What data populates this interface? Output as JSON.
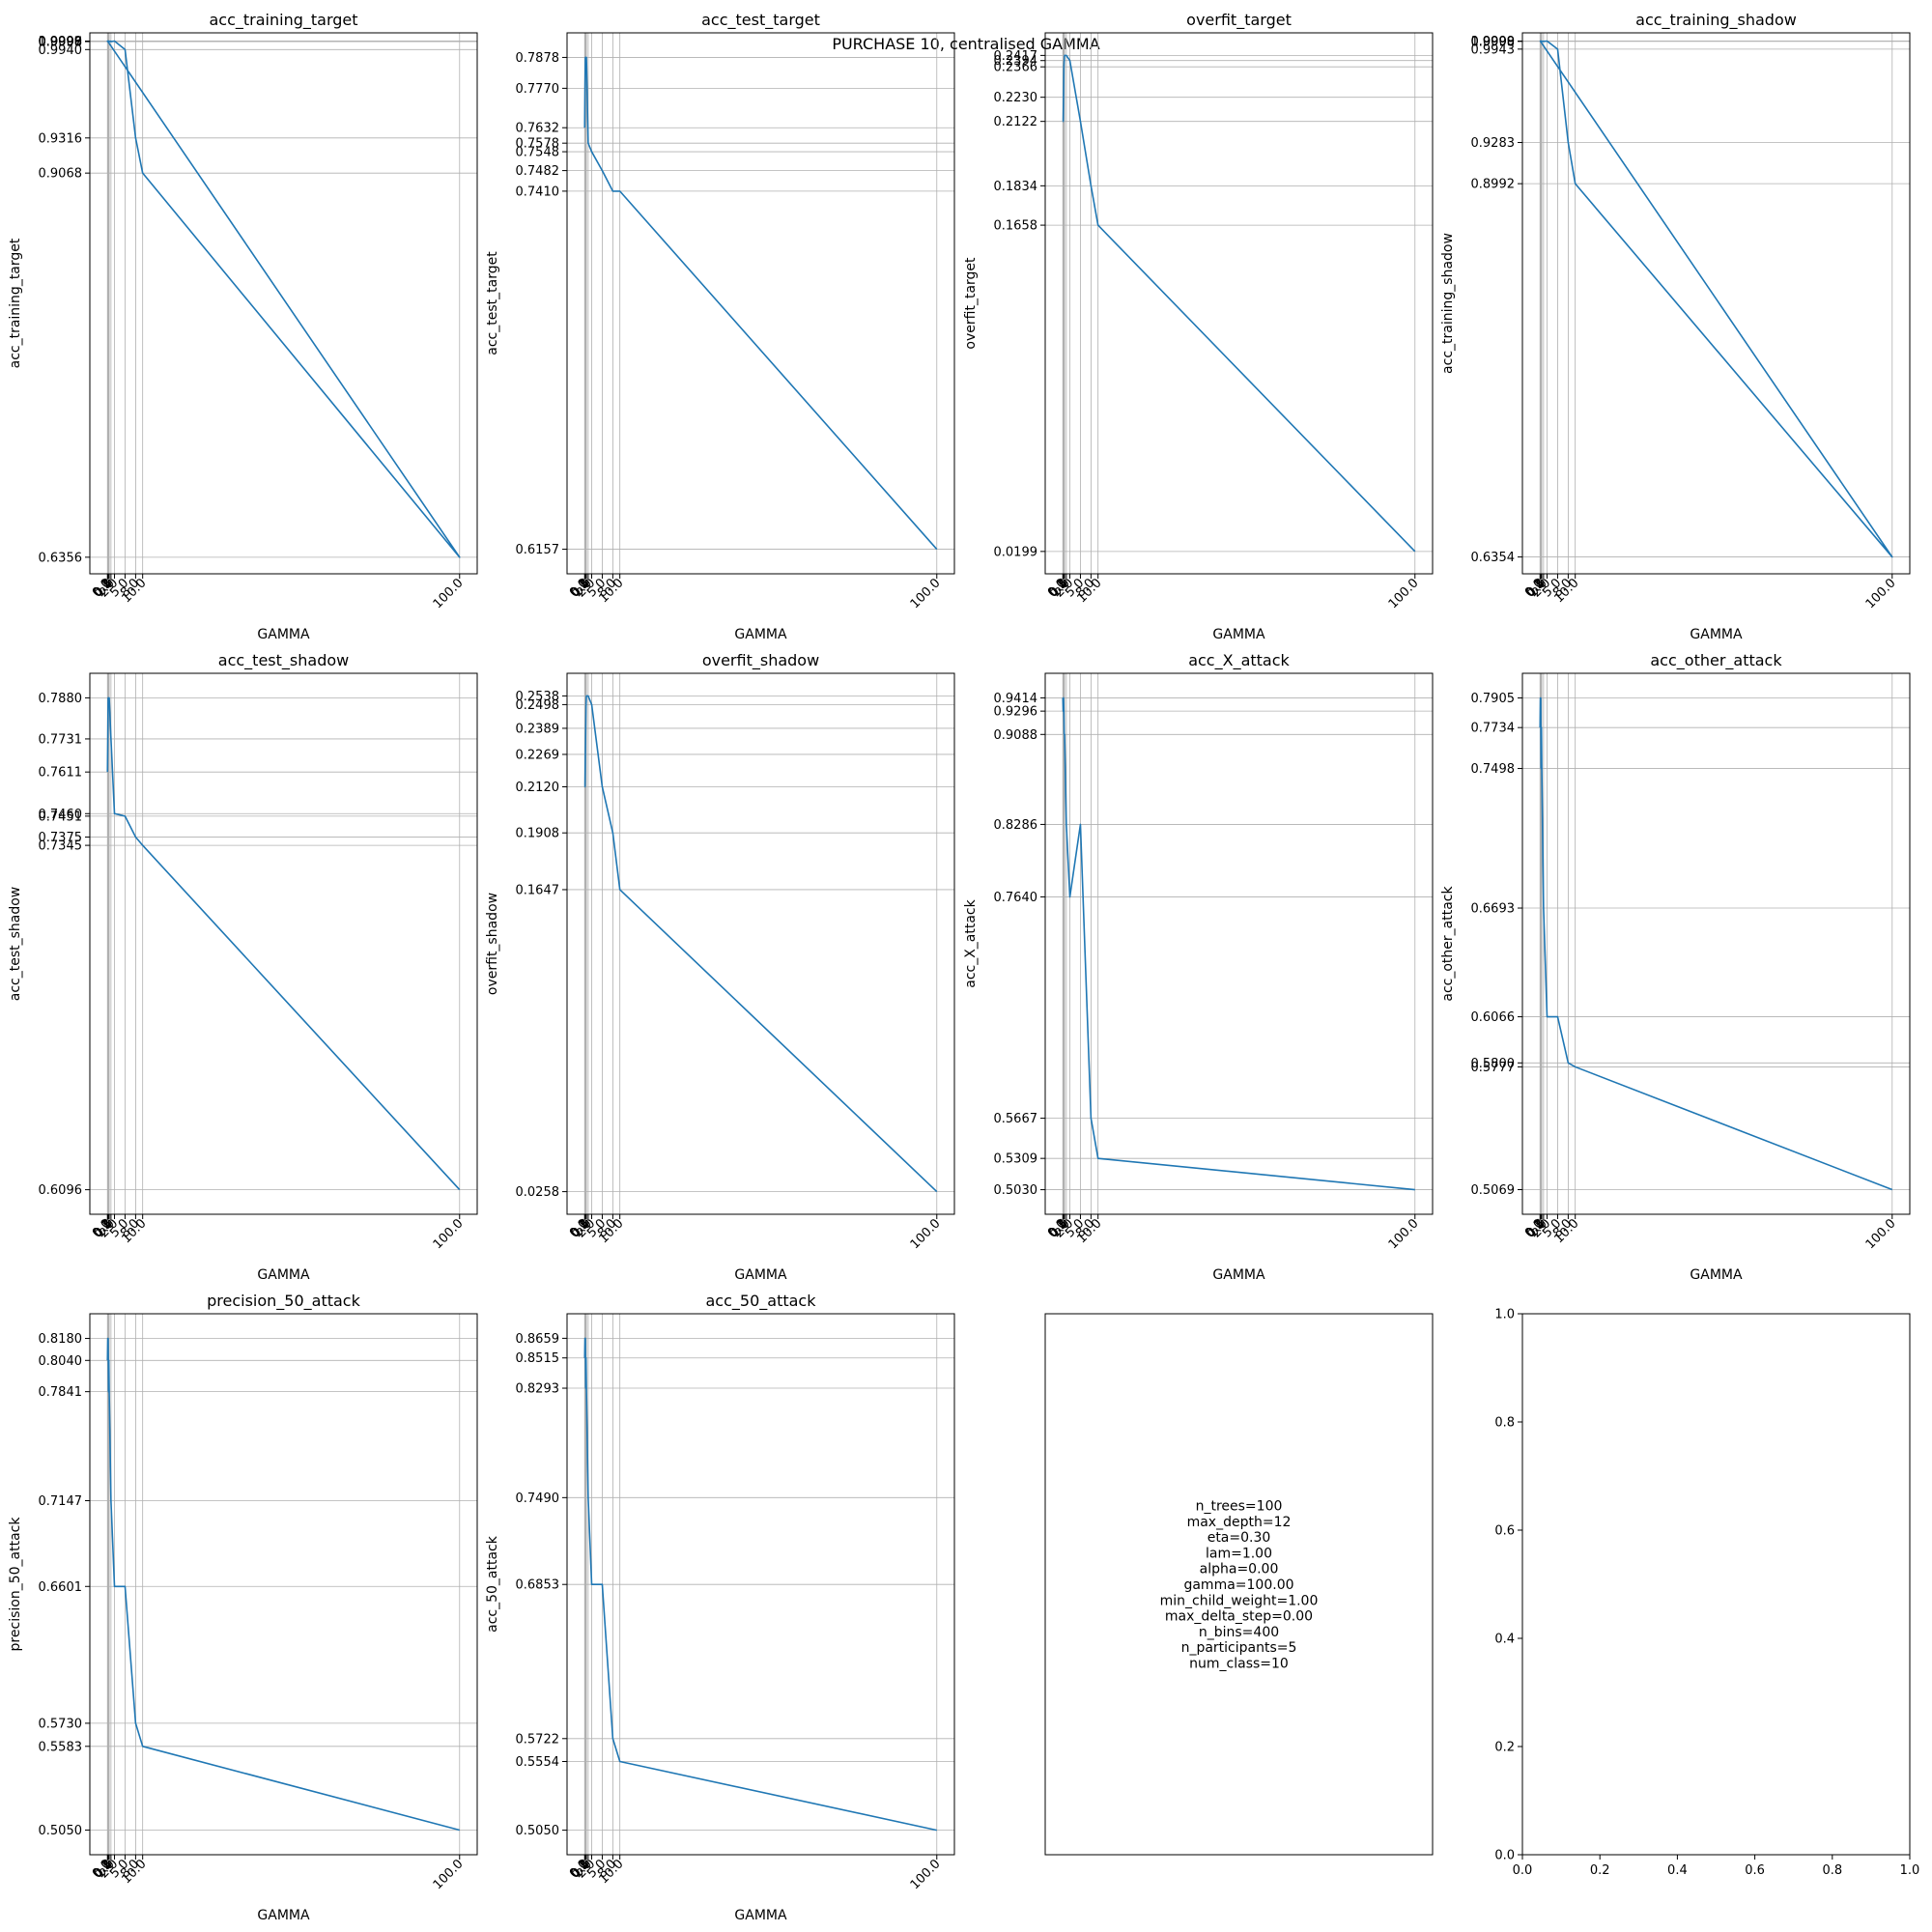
{
  "figure": {
    "suptitle": "PURCHASE 10, centralised GAMMA"
  },
  "chart_data": [
    {
      "type": "line",
      "title": "acc_training_target",
      "xlabel": "GAMMA",
      "ylabel": "acc_training_target",
      "xlim": [
        -5,
        105
      ],
      "ylim": [
        0.6239,
        1.0058
      ],
      "grid": true,
      "x": [
        0.0,
        0.5,
        1.0,
        2.0,
        5.0,
        8.0,
        10.0,
        100.0,
        0.1,
        0.2,
        0.3,
        0.4,
        0.0,
        0.5,
        1.0
      ],
      "y": [
        1.0,
        0.9998,
        0.9996,
        1.0,
        0.994,
        0.9316,
        0.9068,
        0.6356,
        0.9998,
        1.0,
        0.9999,
        1.0,
        0.9999,
        0.9997,
        1.0
      ],
      "ytick_labels": [
        "1.0000",
        "0.9999",
        "0.9998",
        "0.9997",
        "0.9996",
        "0.9940",
        "0.9316",
        "0.9068",
        "0.6356"
      ],
      "xtick_labels": [
        "0.0",
        "0.1",
        "0.2",
        "0.3",
        "0.4",
        "0.5",
        "1.0",
        "2.0",
        "5.0",
        "8.0",
        "10.0",
        "100.0"
      ]
    },
    {
      "type": "line",
      "title": "acc_test_target",
      "xlabel": "GAMMA",
      "ylabel": "acc_test_target",
      "xlim": [
        -5,
        105
      ],
      "ylim": [
        0.6071,
        0.7964
      ],
      "grid": true,
      "x": [
        0.0,
        0.1,
        0.2,
        0.3,
        0.4,
        0.5,
        1.0,
        2.0,
        5.0,
        8.0,
        10.0,
        100.0
      ],
      "y": [
        0.7632,
        0.777,
        0.7878,
        0.7878,
        0.7878,
        0.7878,
        0.7578,
        0.7548,
        0.7482,
        0.741,
        0.741,
        0.6157
      ],
      "ytick_labels": [
        "0.7878",
        "0.7770",
        "0.7632",
        "0.7578",
        "0.7548",
        "0.7482",
        "0.7410",
        "0.6157"
      ],
      "xtick_labels": [
        "0.0",
        "0.1",
        "0.2",
        "0.3",
        "0.4",
        "0.5",
        "1.0",
        "2.0",
        "5.0",
        "8.0",
        "10.0",
        "100.0"
      ]
    },
    {
      "type": "line",
      "title": "overfit_target",
      "xlabel": "GAMMA",
      "ylabel": "overfit_target",
      "xlim": [
        -5,
        105
      ],
      "ylim": [
        0.0099,
        0.2518
      ],
      "grid": true,
      "x": [
        0.0,
        0.1,
        0.2,
        0.3,
        0.4,
        0.5,
        1.0,
        2.0,
        5.0,
        8.0,
        10.0,
        100.0
      ],
      "y": [
        0.2122,
        0.2122,
        0.223,
        0.2366,
        0.2394,
        0.2417,
        0.2417,
        0.2394,
        0.2122,
        0.1834,
        0.1658,
        0.0199
      ],
      "ytick_labels": [
        "0.2417",
        "0.2394",
        "0.2366",
        "0.2230",
        "0.2122",
        "0.1834",
        "0.1658",
        "0.0199"
      ],
      "xtick_labels": [
        "0.0",
        "0.1",
        "0.2",
        "0.3",
        "0.4",
        "0.5",
        "1.0",
        "2.0",
        "5.0",
        "8.0",
        "10.0",
        "100.0"
      ]
    },
    {
      "type": "line",
      "title": "acc_training_shadow",
      "xlabel": "GAMMA",
      "ylabel": "acc_training_shadow",
      "xlim": [
        -5,
        105
      ],
      "ylim": [
        0.6235,
        1.0058
      ],
      "grid": true,
      "x": [
        0.0,
        0.5,
        1.0,
        2.0,
        5.0,
        8.0,
        10.0,
        100.0,
        0.1,
        0.2,
        0.3,
        0.4
      ],
      "y": [
        1.0,
        0.9999,
        0.9998,
        1.0,
        0.9943,
        0.9283,
        0.8992,
        0.6354,
        0.9999,
        1.0,
        1.0,
        0.9998
      ],
      "ytick_labels": [
        "1.0000",
        "0.9999",
        "0.9998",
        "0.9943",
        "0.9283",
        "0.8992",
        "0.6354"
      ],
      "xtick_labels": [
        "0.0",
        "0.1",
        "0.2",
        "0.3",
        "0.4",
        "0.5",
        "1.0",
        "2.0",
        "5.0",
        "8.0",
        "10.0",
        "100.0"
      ]
    },
    {
      "type": "line",
      "title": "acc_test_shadow",
      "xlabel": "GAMMA",
      "ylabel": "acc_test_shadow",
      "xlim": [
        -5,
        105
      ],
      "ylim": [
        0.6007,
        0.7969
      ],
      "grid": true,
      "x": [
        0.0,
        0.1,
        0.2,
        0.3,
        0.4,
        0.5,
        1.0,
        2.0,
        5.0,
        8.0,
        10.0,
        100.0
      ],
      "y": [
        0.7611,
        0.7731,
        0.788,
        0.788,
        0.788,
        0.788,
        0.7731,
        0.746,
        0.7451,
        0.7375,
        0.7345,
        0.6096
      ],
      "ytick_labels": [
        "0.7880",
        "0.7731",
        "0.7611",
        "0.7460",
        "0.7451",
        "0.7375",
        "0.7345",
        "0.6096"
      ],
      "xtick_labels": [
        "0.0",
        "0.1",
        "0.2",
        "0.3",
        "0.4",
        "0.5",
        "1.0",
        "2.0",
        "5.0",
        "8.0",
        "10.0",
        "100.0"
      ]
    },
    {
      "type": "line",
      "title": "overfit_shadow",
      "xlabel": "GAMMA",
      "ylabel": "overfit_shadow",
      "xlim": [
        -5,
        105
      ],
      "ylim": [
        0.0154,
        0.2642
      ],
      "grid": true,
      "x": [
        0.0,
        0.1,
        0.2,
        0.3,
        0.4,
        0.5,
        1.0,
        2.0,
        5.0,
        8.0,
        10.0,
        100.0
      ],
      "y": [
        0.212,
        0.212,
        0.2269,
        0.2389,
        0.2498,
        0.2538,
        0.2538,
        0.2498,
        0.212,
        0.1908,
        0.1647,
        0.0258
      ],
      "ytick_labels": [
        "0.2538",
        "0.2498",
        "0.2389",
        "0.2269",
        "0.2120",
        "0.1908",
        "0.1647",
        "0.0258"
      ],
      "xtick_labels": [
        "0.0",
        "0.1",
        "0.2",
        "0.3",
        "0.4",
        "0.5",
        "1.0",
        "2.0",
        "5.0",
        "8.0",
        "10.0",
        "100.0"
      ]
    },
    {
      "type": "line",
      "title": "acc_X_attack",
      "xlabel": "GAMMA",
      "ylabel": "acc_X_attack",
      "xlim": [
        -5,
        105
      ],
      "ylim": [
        0.4811,
        0.9633
      ],
      "grid": true,
      "x": [
        0.0,
        0.1,
        0.2,
        0.3,
        0.4,
        0.5,
        1.0,
        2.0,
        5.0,
        8.0,
        10.0,
        100.0
      ],
      "y": [
        0.9414,
        0.9296,
        0.9414,
        0.9296,
        0.9088,
        0.9088,
        0.8286,
        0.764,
        0.8286,
        0.5667,
        0.5309,
        0.503
      ],
      "ytick_labels": [
        "0.9414",
        "0.9296",
        "0.9088",
        "0.8286",
        "0.7640",
        "0.5667",
        "0.5309",
        "0.5030"
      ],
      "xtick_labels": [
        "0.0",
        "0.1",
        "0.2",
        "0.3",
        "0.4",
        "0.5",
        "1.0",
        "2.0",
        "5.0",
        "8.0",
        "10.0",
        "100.0"
      ]
    },
    {
      "type": "line",
      "title": "acc_other_attack",
      "xlabel": "GAMMA",
      "ylabel": "acc_other_attack",
      "xlim": [
        -5,
        105
      ],
      "ylim": [
        0.4927,
        0.8047
      ],
      "grid": true,
      "x": [
        0.0,
        0.1,
        0.2,
        0.3,
        0.4,
        0.5,
        1.0,
        2.0,
        5.0,
        8.0,
        10.0,
        100.0
      ],
      "y": [
        0.7734,
        0.7905,
        0.7905,
        0.7498,
        0.7734,
        0.7498,
        0.6693,
        0.6066,
        0.6066,
        0.58,
        0.5777,
        0.5069
      ],
      "ytick_labels": [
        "0.7905",
        "0.7734",
        "0.7498",
        "0.6693",
        "0.6066",
        "0.5800",
        "0.5777",
        "0.5069"
      ],
      "xtick_labels": [
        "0.0",
        "0.1",
        "0.2",
        "0.3",
        "0.4",
        "0.5",
        "1.0",
        "2.0",
        "5.0",
        "8.0",
        "10.0",
        "100.0"
      ]
    },
    {
      "type": "line",
      "title": "precision_50_attack",
      "xlabel": "GAMMA",
      "ylabel": "precision_50_attack",
      "xlim": [
        -5,
        105
      ],
      "ylim": [
        0.4893,
        0.8337
      ],
      "grid": true,
      "x": [
        0.0,
        0.1,
        0.2,
        0.3,
        0.4,
        0.5,
        1.0,
        2.0,
        5.0,
        8.0,
        10.0,
        100.0
      ],
      "y": [
        0.804,
        0.818,
        0.818,
        0.7841,
        0.804,
        0.7841,
        0.7147,
        0.6601,
        0.6601,
        0.573,
        0.5583,
        0.505
      ],
      "ytick_labels": [
        "0.8180",
        "0.8040",
        "0.7841",
        "0.7147",
        "0.6601",
        "0.5730",
        "0.5583",
        "0.5050"
      ],
      "xtick_labels": [
        "0.0",
        "0.1",
        "0.2",
        "0.3",
        "0.4",
        "0.5",
        "1.0",
        "2.0",
        "5.0",
        "8.0",
        "10.0",
        "100.0"
      ]
    },
    {
      "type": "line",
      "title": "acc_50_attack",
      "xlabel": "GAMMA",
      "ylabel": "acc_50_attack",
      "xlim": [
        -5,
        105
      ],
      "ylim": [
        0.487,
        0.8839
      ],
      "grid": true,
      "x": [
        0.0,
        0.1,
        0.2,
        0.3,
        0.4,
        0.5,
        1.0,
        2.0,
        5.0,
        8.0,
        10.0,
        100.0
      ],
      "y": [
        0.8515,
        0.8659,
        0.8659,
        0.8293,
        0.8515,
        0.8293,
        0.749,
        0.6853,
        0.6853,
        0.5722,
        0.5554,
        0.505
      ],
      "ytick_labels": [
        "0.8659",
        "0.8515",
        "0.8293",
        "0.7490",
        "0.6853",
        "0.5722",
        "0.5554",
        "0.5050"
      ],
      "xtick_labels": [
        "0.0",
        "0.1",
        "0.2",
        "0.3",
        "0.4",
        "0.5",
        "1.0",
        "2.0",
        "5.0",
        "8.0",
        "10.0",
        "100.0"
      ]
    },
    {
      "type": "table",
      "title": "",
      "text_lines": [
        "n_trees=100",
        "max_depth=12",
        "eta=0.30",
        "lam=1.00",
        "alpha=0.00",
        "gamma=100.00",
        "min_child_weight=1.00",
        "max_delta_step=0.00",
        "n_bins=400",
        "n_participants=5",
        "num_class=10"
      ]
    },
    {
      "type": "line",
      "title": "",
      "xlim": [
        0,
        1
      ],
      "ylim": [
        0,
        1
      ],
      "series": [],
      "xtick_labels": [
        "0.0",
        "0.2",
        "0.4",
        "0.6",
        "0.8",
        "1.0"
      ],
      "ytick_labels": [
        "0.0",
        "0.2",
        "0.4",
        "0.6",
        "0.8",
        "1.0"
      ]
    }
  ],
  "colors": {
    "line": "#1f77b4",
    "grid": "#b0b0b0",
    "axes": "#000000"
  }
}
